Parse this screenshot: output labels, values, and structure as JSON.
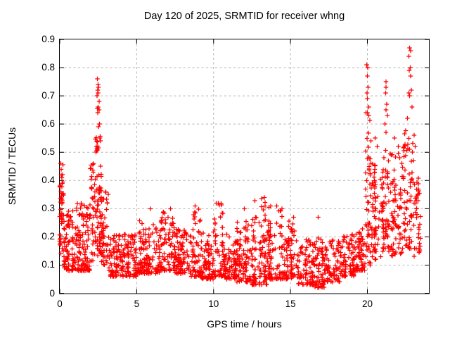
{
  "chart_data": {
    "type": "scatter",
    "title": "Day 120 of 2025, SRMTID for receiver whng",
    "xlabel": "GPS time / hours",
    "ylabel": "SRMTID / TECUs",
    "xlim": [
      0,
      24
    ],
    "ylim": [
      0,
      0.9
    ],
    "xtick_values": [
      0,
      5,
      10,
      15,
      20
    ],
    "xtick_labels": [
      "0",
      "5",
      "10",
      "15",
      "20"
    ],
    "ytick_values": [
      0,
      0.1,
      0.2,
      0.3,
      0.4,
      0.5,
      0.6,
      0.7,
      0.8,
      0.9
    ],
    "ytick_labels": [
      "0",
      "0.1",
      "0.2",
      "0.3",
      "0.4",
      "0.5",
      "0.6",
      "0.7",
      "0.8",
      "0.9"
    ],
    "grid": true,
    "legend": "none",
    "marker": "plus",
    "marker_color": "#ff0000",
    "grid_color": "#b4b4b4",
    "axis_color": "#000000",
    "background_color": "#ffffff",
    "seed": 1337,
    "notable_points": [
      [
        0.05,
        0.46
      ],
      [
        0.1,
        0.44
      ],
      [
        0.08,
        0.42
      ],
      [
        0.14,
        0.41
      ],
      [
        0.17,
        0.39
      ],
      [
        0.06,
        0.36
      ],
      [
        2.45,
        0.76
      ],
      [
        2.48,
        0.74
      ],
      [
        2.52,
        0.73
      ],
      [
        2.46,
        0.72
      ],
      [
        2.5,
        0.71
      ],
      [
        2.43,
        0.7
      ],
      [
        2.55,
        0.68
      ],
      [
        2.5,
        0.66
      ],
      [
        2.44,
        0.655
      ],
      [
        2.56,
        0.65
      ],
      [
        2.47,
        0.64
      ],
      [
        2.58,
        0.6
      ],
      [
        2.52,
        0.59
      ],
      [
        2.6,
        0.55
      ],
      [
        2.38,
        0.52
      ],
      [
        2.35,
        0.5
      ],
      [
        5.9,
        0.3
      ],
      [
        7.2,
        0.3
      ],
      [
        8.8,
        0.31
      ],
      [
        10.3,
        0.32
      ],
      [
        12.0,
        0.3
      ],
      [
        13.3,
        0.34
      ],
      [
        13.35,
        0.31
      ],
      [
        14.1,
        0.31
      ],
      [
        15.2,
        0.27
      ],
      [
        16.8,
        0.27
      ],
      [
        19.95,
        0.81
      ],
      [
        20.02,
        0.8
      ],
      [
        20.0,
        0.77
      ],
      [
        20.05,
        0.73
      ],
      [
        19.97,
        0.71
      ],
      [
        20.0,
        0.69
      ],
      [
        20.1,
        0.66
      ],
      [
        20.0,
        0.64
      ],
      [
        20.5,
        0.55
      ],
      [
        20.65,
        0.52
      ],
      [
        21.2,
        0.75
      ],
      [
        21.22,
        0.73
      ],
      [
        21.18,
        0.71
      ],
      [
        21.25,
        0.67
      ],
      [
        21.2,
        0.65
      ],
      [
        21.3,
        0.63
      ],
      [
        21.15,
        0.6
      ],
      [
        21.2,
        0.57
      ],
      [
        21.75,
        0.55
      ],
      [
        22.0,
        0.52
      ],
      [
        22.75,
        0.87
      ],
      [
        22.8,
        0.86
      ],
      [
        22.7,
        0.84
      ],
      [
        22.78,
        0.8
      ],
      [
        22.72,
        0.79
      ],
      [
        22.8,
        0.77
      ],
      [
        22.85,
        0.72
      ],
      [
        22.7,
        0.71
      ],
      [
        22.75,
        0.7
      ],
      [
        22.9,
        0.66
      ],
      [
        22.6,
        0.62
      ],
      [
        23.05,
        0.56
      ],
      [
        23.1,
        0.52
      ],
      [
        23.0,
        0.47
      ]
    ],
    "density_profile": [
      {
        "h0": 0.0,
        "h1": 0.25,
        "n": 40,
        "lo": 0.13,
        "hi": 0.47,
        "sk": 1.0
      },
      {
        "h0": 0.25,
        "h1": 1.0,
        "n": 85,
        "lo": 0.08,
        "hi": 0.3,
        "sk": 1.8
      },
      {
        "h0": 1.0,
        "h1": 2.0,
        "n": 115,
        "lo": 0.08,
        "hi": 0.33,
        "sk": 1.6
      },
      {
        "h0": 2.0,
        "h1": 2.3,
        "n": 40,
        "lo": 0.1,
        "hi": 0.46,
        "sk": 1.2
      },
      {
        "h0": 2.3,
        "h1": 2.75,
        "n": 70,
        "lo": 0.13,
        "hi": 0.56,
        "sk": 1.1
      },
      {
        "h0": 2.75,
        "h1": 3.2,
        "n": 45,
        "lo": 0.1,
        "hi": 0.36,
        "sk": 1.4
      },
      {
        "h0": 3.2,
        "h1": 5.0,
        "n": 165,
        "lo": 0.06,
        "hi": 0.21,
        "sk": 1.5
      },
      {
        "h0": 5.0,
        "h1": 6.5,
        "n": 135,
        "lo": 0.07,
        "hi": 0.26,
        "sk": 1.7
      },
      {
        "h0": 6.5,
        "h1": 7.5,
        "n": 95,
        "lo": 0.08,
        "hi": 0.3,
        "sk": 1.8
      },
      {
        "h0": 7.5,
        "h1": 8.5,
        "n": 95,
        "lo": 0.07,
        "hi": 0.23,
        "sk": 1.6
      },
      {
        "h0": 8.5,
        "h1": 9.2,
        "n": 65,
        "lo": 0.06,
        "hi": 0.31,
        "sk": 1.8
      },
      {
        "h0": 9.2,
        "h1": 10.0,
        "n": 75,
        "lo": 0.05,
        "hi": 0.22,
        "sk": 1.6
      },
      {
        "h0": 10.0,
        "h1": 10.6,
        "n": 55,
        "lo": 0.06,
        "hi": 0.32,
        "sk": 1.9
      },
      {
        "h0": 10.6,
        "h1": 11.5,
        "n": 85,
        "lo": 0.05,
        "hi": 0.21,
        "sk": 1.5
      },
      {
        "h0": 11.5,
        "h1": 12.5,
        "n": 95,
        "lo": 0.04,
        "hi": 0.26,
        "sk": 1.7
      },
      {
        "h0": 12.5,
        "h1": 13.5,
        "n": 95,
        "lo": 0.03,
        "hi": 0.34,
        "sk": 1.8
      },
      {
        "h0": 13.5,
        "h1": 14.5,
        "n": 95,
        "lo": 0.05,
        "hi": 0.31,
        "sk": 1.9
      },
      {
        "h0": 14.5,
        "h1": 15.5,
        "n": 85,
        "lo": 0.05,
        "hi": 0.27,
        "sk": 1.8
      },
      {
        "h0": 15.5,
        "h1": 16.5,
        "n": 80,
        "lo": 0.03,
        "hi": 0.19,
        "sk": 1.5
      },
      {
        "h0": 16.5,
        "h1": 17.2,
        "n": 60,
        "lo": 0.02,
        "hi": 0.2,
        "sk": 1.5
      },
      {
        "h0": 17.2,
        "h1": 18.2,
        "n": 80,
        "lo": 0.04,
        "hi": 0.19,
        "sk": 1.5
      },
      {
        "h0": 18.2,
        "h1": 19.2,
        "n": 80,
        "lo": 0.06,
        "hi": 0.21,
        "sk": 1.5
      },
      {
        "h0": 19.2,
        "h1": 19.85,
        "n": 60,
        "lo": 0.08,
        "hi": 0.23,
        "sk": 1.5
      },
      {
        "h0": 19.85,
        "h1": 20.25,
        "n": 50,
        "lo": 0.1,
        "hi": 0.66,
        "sk": 1.3
      },
      {
        "h0": 20.25,
        "h1": 21.0,
        "n": 75,
        "lo": 0.12,
        "hi": 0.46,
        "sk": 1.3
      },
      {
        "h0": 21.0,
        "h1": 21.5,
        "n": 55,
        "lo": 0.14,
        "hi": 0.52,
        "sk": 1.2
      },
      {
        "h0": 21.5,
        "h1": 22.3,
        "n": 75,
        "lo": 0.13,
        "hi": 0.5,
        "sk": 1.3
      },
      {
        "h0": 22.3,
        "h1": 23.0,
        "n": 65,
        "lo": 0.15,
        "hi": 0.6,
        "sk": 1.2
      },
      {
        "h0": 23.0,
        "h1": 23.45,
        "n": 40,
        "lo": 0.13,
        "hi": 0.42,
        "sk": 1.3
      }
    ]
  }
}
